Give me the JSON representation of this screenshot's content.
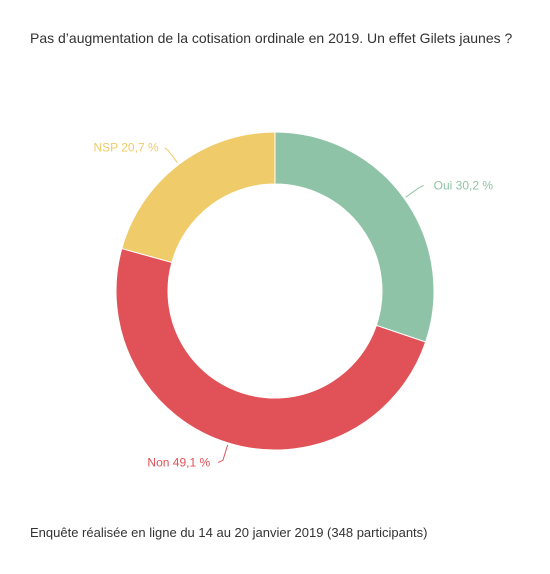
{
  "chart_data": {
    "type": "pie",
    "title": "Pas d’augmentation de la cotisation ordinale en 2019. Un effet Gilets jaunes ?",
    "footnote": "Enquête réalisée en ligne du 14 au 20 janvier 2019  (348 participants)",
    "slices": [
      {
        "label": "Oui",
        "value": 30.2,
        "display": "Oui 30,2 %",
        "color": "#8fc3a7"
      },
      {
        "label": "Non",
        "value": 49.1,
        "display": "Non 49,1 %",
        "color": "#e05257"
      },
      {
        "label": "NSP",
        "value": 20.7,
        "display": "NSP 20,7 %",
        "color": "#f0cb69"
      }
    ],
    "donut": true,
    "legend": "none"
  }
}
